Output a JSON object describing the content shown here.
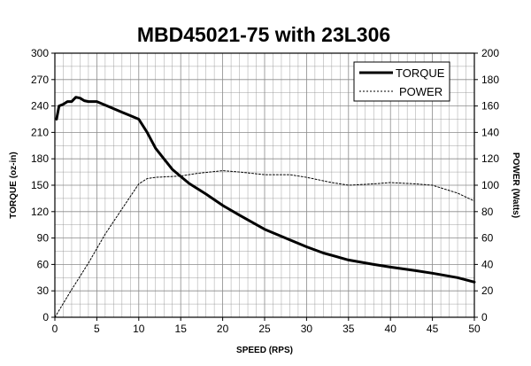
{
  "chart_data": {
    "type": "line",
    "title": "MBD45021-75 with 23L306",
    "xlabel": "SPEED (RPS)",
    "ylabel_left": "TORQUE (oz-in)",
    "ylabel_right": "POWER (Watts)",
    "xlim": [
      0,
      50
    ],
    "ylim_left": [
      0,
      300
    ],
    "ylim_right": [
      0,
      200
    ],
    "x_ticks": [
      "0",
      "5",
      "10",
      "15",
      "20",
      "25",
      "30",
      "35",
      "40",
      "45",
      "50"
    ],
    "y_left_ticks": [
      "0",
      "30",
      "60",
      "90",
      "120",
      "150",
      "180",
      "210",
      "240",
      "270",
      "300"
    ],
    "y_right_ticks": [
      "0",
      "20",
      "40",
      "60",
      "80",
      "100",
      "120",
      "140",
      "160",
      "180",
      "200"
    ],
    "grid": true,
    "legend_position": "top-right",
    "series": [
      {
        "name": "TORQUE",
        "axis": "left",
        "style": "solid",
        "x": [
          0.2,
          0.5,
          1,
          1.5,
          2,
          2.5,
          3,
          3.5,
          4,
          5,
          6,
          7,
          8,
          9,
          10,
          11,
          12,
          13,
          14,
          15,
          16,
          18,
          20,
          22,
          25,
          28,
          30,
          32,
          35,
          38,
          40,
          43,
          45,
          48,
          50
        ],
        "y": [
          225,
          240,
          242,
          245,
          245,
          250,
          249,
          246,
          245,
          245,
          241,
          237,
          233,
          229,
          225,
          210,
          192,
          180,
          168,
          160,
          152,
          140,
          127,
          116,
          100,
          88,
          80,
          73,
          65,
          60,
          57,
          53,
          50,
          45,
          40
        ]
      },
      {
        "name": "POWER",
        "axis": "right",
        "style": "dotted",
        "x": [
          0,
          2,
          4,
          6,
          8,
          10,
          11,
          12,
          15,
          17,
          20,
          22,
          25,
          28,
          30,
          33,
          35,
          38,
          40,
          43,
          45,
          48,
          50
        ],
        "y": [
          0,
          21,
          41,
          63,
          82,
          101,
          105,
          106,
          107,
          109,
          111,
          110,
          108,
          108,
          106,
          102,
          100,
          101,
          102,
          101,
          100,
          94,
          88
        ]
      }
    ]
  },
  "colors": {
    "line": "#000000",
    "grid": "#8a8a8a",
    "background": "#ffffff"
  }
}
